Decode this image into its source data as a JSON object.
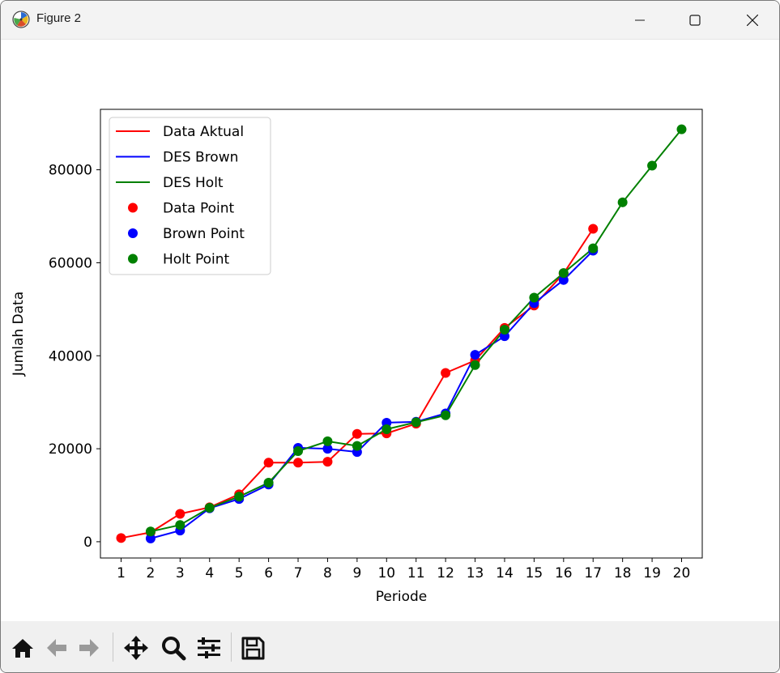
{
  "window": {
    "title": "Figure 2",
    "icons": {
      "app": "matplotlib-icon",
      "minimize": "minimize-icon",
      "maximize": "maximize-icon",
      "close": "close-icon"
    }
  },
  "toolbar": {
    "buttons": [
      "home-icon",
      "back-arrow-icon",
      "forward-arrow-icon",
      "pan-move-icon",
      "zoom-magnifier-icon",
      "configure-subplots-icon",
      "save-floppy-icon"
    ]
  },
  "chart_data": {
    "type": "line",
    "title": "",
    "xlabel": "Periode",
    "ylabel": "Jumlah Data",
    "xlim": [
      0.3,
      20.7
    ],
    "ylim": [
      -3500,
      93000
    ],
    "x_ticks": [
      "1",
      "2",
      "3",
      "4",
      "5",
      "6",
      "7",
      "8",
      "9",
      "10",
      "11",
      "12",
      "13",
      "14",
      "15",
      "16",
      "17",
      "18",
      "19",
      "20"
    ],
    "y_ticks": [
      {
        "value": 0,
        "label": "0"
      },
      {
        "value": 20000,
        "label": "20000"
      },
      {
        "value": 40000,
        "label": "40000"
      },
      {
        "value": 60000,
        "label": "60000"
      },
      {
        "value": 80000,
        "label": "80000"
      }
    ],
    "grid": false,
    "legend_position": "top-left",
    "legend": [
      {
        "label": "Data Aktual",
        "kind": "line",
        "color": "#ff0000"
      },
      {
        "label": "DES Brown",
        "kind": "line",
        "color": "#0000ff"
      },
      {
        "label": "DES Holt",
        "kind": "line",
        "color": "#008000"
      },
      {
        "label": "Data Point",
        "kind": "marker",
        "color": "#ff0000"
      },
      {
        "label": "Brown Point",
        "kind": "marker",
        "color": "#0000ff"
      },
      {
        "label": "Holt Point",
        "kind": "marker",
        "color": "#008000"
      }
    ],
    "series": [
      {
        "name": "Data Aktual",
        "color": "#ff0000",
        "x": [
          1,
          2,
          3,
          4,
          5,
          6,
          7,
          8,
          9,
          10,
          11,
          12,
          13,
          14,
          15,
          16,
          17
        ],
        "y": [
          800,
          2000,
          6000,
          7400,
          10200,
          17000,
          17000,
          17200,
          23200,
          23300,
          25400,
          36300,
          39000,
          46000,
          50800,
          57700,
          67300
        ]
      },
      {
        "name": "DES Brown",
        "color": "#0000ff",
        "x": [
          2,
          3,
          4,
          5,
          6,
          7,
          8,
          9,
          10,
          11,
          12,
          13,
          14,
          15,
          16,
          17
        ],
        "y": [
          700,
          2400,
          7200,
          9200,
          12300,
          20200,
          20000,
          19300,
          25600,
          25800,
          27600,
          40200,
          44200,
          51300,
          56300,
          62600
        ]
      },
      {
        "name": "DES Holt",
        "color": "#008000",
        "x": [
          2,
          3,
          4,
          5,
          6,
          7,
          8,
          9,
          10,
          11,
          12,
          13,
          14,
          15,
          16,
          17,
          18,
          19,
          20
        ],
        "y": [
          2200,
          3600,
          7300,
          9700,
          12700,
          19500,
          21600,
          20600,
          24200,
          25700,
          27200,
          38000,
          45600,
          52500,
          57800,
          63100,
          73000,
          80900,
          88700
        ]
      }
    ]
  }
}
